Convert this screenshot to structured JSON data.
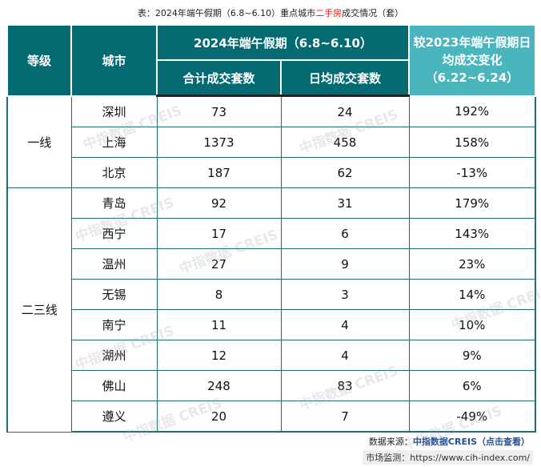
{
  "title": {
    "prefix": "表：2024年端午假期（6.8~6.10）重点城市",
    "highlight": "二手房",
    "suffix": "成交情况（套）"
  },
  "header": {
    "level": "等级",
    "city": "城市",
    "period": "2024年端午假期（6.8~6.10）",
    "total": "合计成交套数",
    "daily": "日均成交套数",
    "change": "较2023年端午假期日均成交变化（6.22~6.24）"
  },
  "groups": [
    {
      "label": "一线"
    },
    {
      "label": "二三线"
    }
  ],
  "rows": [
    {
      "city": "深圳",
      "total": "73",
      "daily": "24",
      "change": "192%"
    },
    {
      "city": "上海",
      "total": "1373",
      "daily": "458",
      "change": "158%"
    },
    {
      "city": "北京",
      "total": "187",
      "daily": "62",
      "change": "-13%"
    },
    {
      "city": "青岛",
      "total": "92",
      "daily": "31",
      "change": "179%"
    },
    {
      "city": "西宁",
      "total": "17",
      "daily": "6",
      "change": "143%"
    },
    {
      "city": "温州",
      "total": "27",
      "daily": "9",
      "change": "23%"
    },
    {
      "city": "无锡",
      "total": "8",
      "daily": "3",
      "change": "14%"
    },
    {
      "city": "南宁",
      "total": "11",
      "daily": "4",
      "change": "10%"
    },
    {
      "city": "湖州",
      "total": "12",
      "daily": "4",
      "change": "9%"
    },
    {
      "city": "佛山",
      "total": "248",
      "daily": "83",
      "change": "6%"
    },
    {
      "city": "遵义",
      "total": "20",
      "daily": "7",
      "change": "-49%"
    }
  ],
  "watermark": "中指数据 CREIS",
  "source": {
    "label": "数据来源：",
    "link": "中指数据CREIS（点击查看）"
  },
  "monitor": {
    "label": "市场监测：",
    "url": "https://www.cih-index.com/"
  },
  "colors": {
    "header": "#046b72",
    "header_highlight": "#4ab5bd",
    "border": "#1f6c72"
  }
}
